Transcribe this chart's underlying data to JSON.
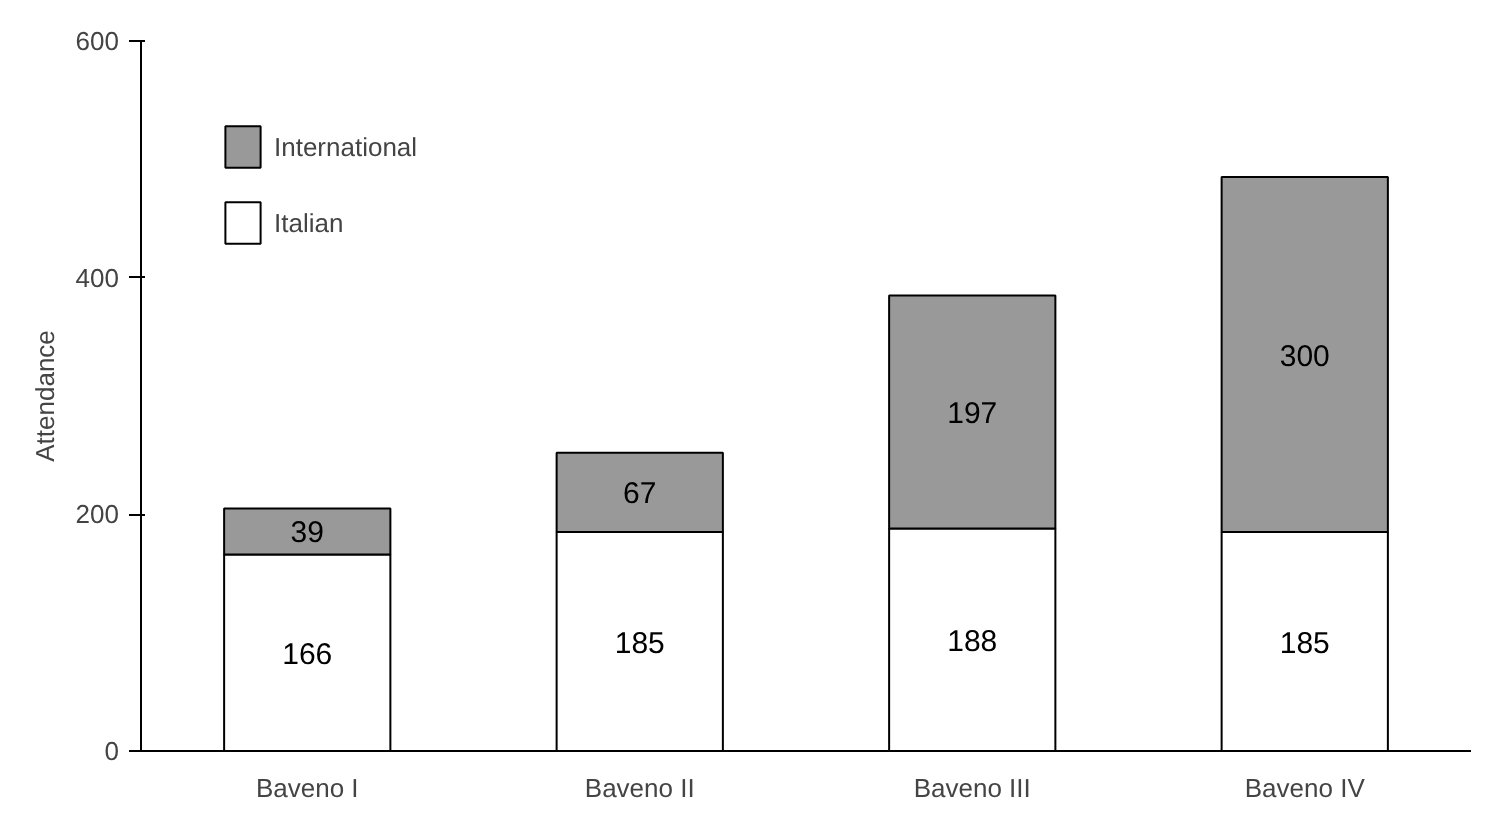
{
  "chart_data": {
    "type": "bar",
    "stacked": true,
    "ylabel": "Attendance",
    "categories": [
      "Baveno I",
      "Baveno II",
      "Baveno III",
      "Baveno IV"
    ],
    "series": [
      {
        "name": "Italian",
        "color": "#ffffff",
        "values": [
          166,
          185,
          188,
          185
        ]
      },
      {
        "name": "International",
        "color": "#999999",
        "values": [
          39,
          67,
          197,
          300
        ]
      }
    ],
    "ylim": [
      0,
      600
    ],
    "yticks": [
      0,
      200,
      400,
      600
    ],
    "grid": false,
    "legend": "top left",
    "data_labels": true
  }
}
